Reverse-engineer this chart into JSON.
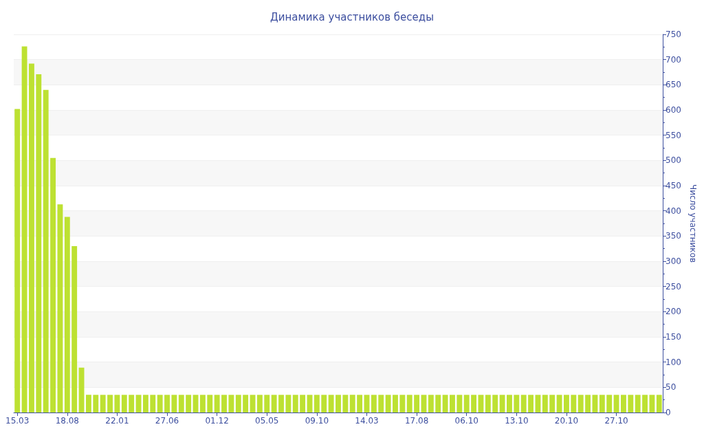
{
  "chart_data": {
    "type": "bar",
    "title": "Динамика участников беседы",
    "ylabel": "Число участников",
    "categories": [
      "15.03",
      null,
      null,
      null,
      null,
      null,
      null,
      "18.08",
      null,
      null,
      null,
      null,
      null,
      null,
      "22.01",
      null,
      null,
      null,
      null,
      null,
      null,
      "27.06",
      null,
      null,
      null,
      null,
      null,
      null,
      "01.12",
      null,
      null,
      null,
      null,
      null,
      null,
      "05.05",
      null,
      null,
      null,
      null,
      null,
      null,
      "09.10",
      null,
      null,
      null,
      null,
      null,
      null,
      "14.03",
      null,
      null,
      null,
      null,
      null,
      null,
      "17.08",
      null,
      null,
      null,
      null,
      null,
      null,
      "06.10",
      null,
      null,
      null,
      null,
      null,
      null,
      "13.10",
      null,
      null,
      null,
      null,
      null,
      null,
      "20.10",
      null,
      null,
      null,
      null,
      null,
      null,
      "27.10",
      null,
      null,
      null,
      null,
      null,
      null
    ],
    "values": [
      602,
      726,
      692,
      671,
      640,
      505,
      413,
      388,
      330,
      89,
      35,
      35,
      35,
      35,
      35,
      35,
      35,
      35,
      35,
      35,
      35,
      35,
      35,
      35,
      35,
      35,
      35,
      35,
      35,
      35,
      35,
      35,
      35,
      35,
      35,
      35,
      35,
      35,
      35,
      35,
      35,
      35,
      35,
      35,
      35,
      35,
      35,
      35,
      35,
      35,
      35,
      35,
      35,
      35,
      35,
      35,
      35,
      35,
      35,
      35,
      35,
      35,
      35,
      35,
      35,
      35,
      35,
      35,
      35,
      35,
      35,
      35,
      35,
      35,
      35,
      35,
      35,
      35,
      35,
      35,
      35,
      35,
      35,
      35,
      35,
      35,
      35,
      35,
      35,
      35,
      35
    ],
    "color": "#bde132",
    "ylim": [
      0,
      750
    ],
    "yticks": [
      0,
      50,
      100,
      150,
      200,
      250,
      300,
      350,
      400,
      450,
      500,
      550,
      600,
      650,
      700,
      750
    ],
    "grid": "y"
  }
}
